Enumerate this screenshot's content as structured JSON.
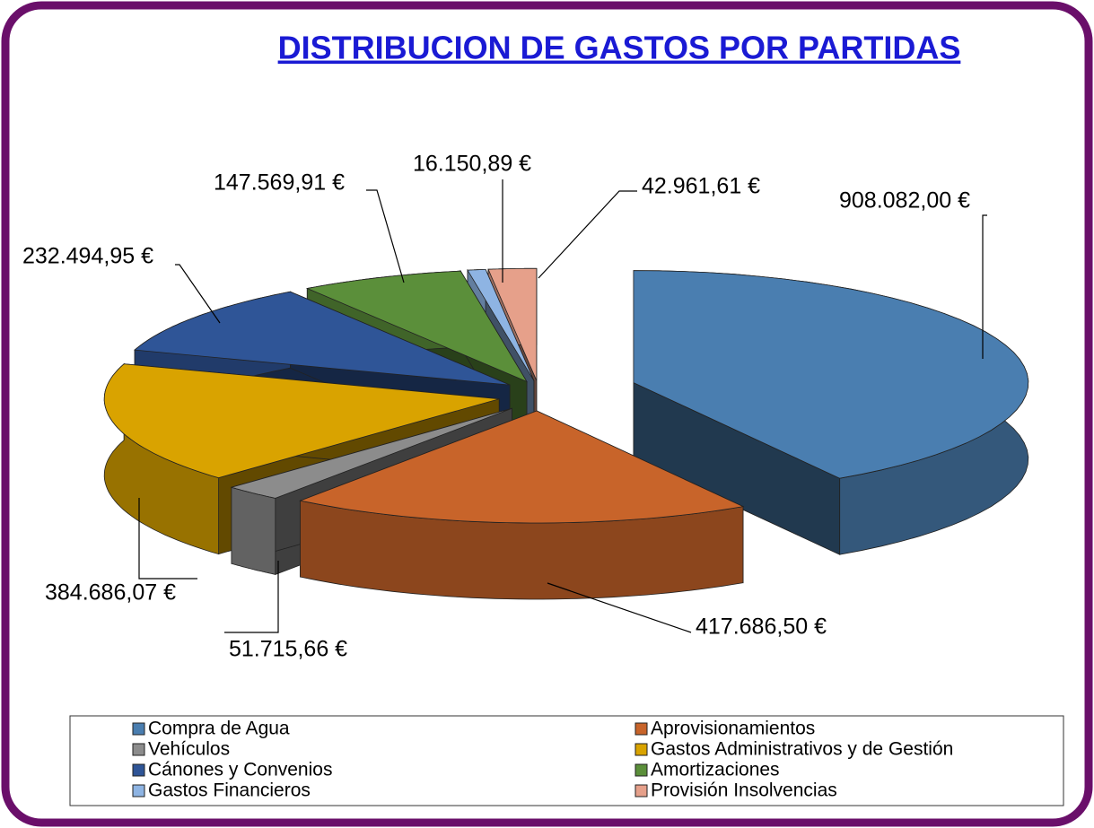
{
  "chart_data": {
    "type": "pie3d",
    "title": "DISTRIBUCION DE GASTOS POR PARTIDAS",
    "categories": [
      "Compra de Agua",
      "Aprovisionamientos",
      "Vehículos",
      "Gastos Administrativos y de Gestión",
      "Cánones y Convenios",
      "Amortizaciones",
      "Gastos Financieros",
      "Provisión Insolvencias"
    ],
    "values": [
      908082.0,
      417686.5,
      51715.66,
      384686.07,
      232494.95,
      147569.91,
      16150.89,
      42961.61
    ],
    "value_labels": [
      "908.082,00 €",
      "417.686,50 €",
      "51.715,66 €",
      "384.686,07 €",
      "232.494,95 €",
      "147.569,91 €",
      "16.150,89 €",
      "42.961,61 €"
    ],
    "colors": [
      "#4a7eb0",
      "#c8642a",
      "#8c8c8c",
      "#d9a300",
      "#2f5597",
      "#5b8f3a",
      "#8eb4e3",
      "#e6a08a"
    ]
  }
}
